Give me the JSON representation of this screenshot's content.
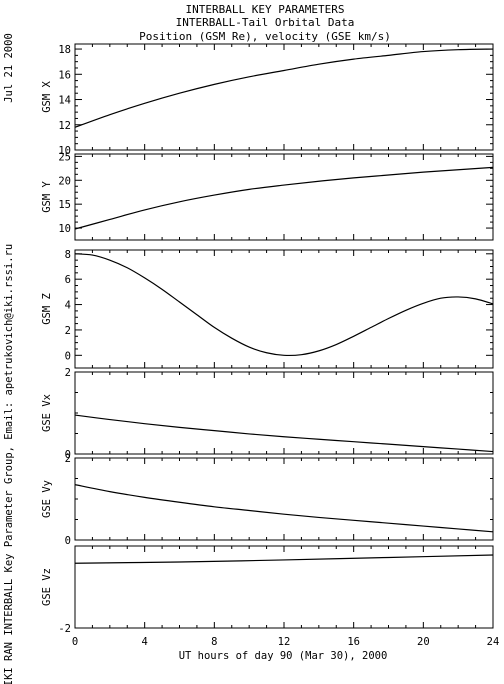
{
  "header": {
    "title_lines": [
      "INTERBALL KEY PARAMETERS",
      "INTERBALL-Tail Orbital Data",
      "Position (GSM Re), velocity (GSE km/s)"
    ],
    "date_stamp": "Jul 21 2000",
    "credit": "IKI RAN INTERBALL Key Parameter Group, Email: apetrukovich@iki.rssi.ru"
  },
  "chart_data": {
    "type": "line",
    "xlabel": "UT hours of day  90 (Mar 30), 2000",
    "xlim": [
      0,
      24
    ],
    "xticks": [
      0,
      4,
      8,
      12,
      16,
      20,
      24
    ],
    "panels": [
      {
        "id": "gsm-x",
        "ylabel": "GSM X",
        "ylim": [
          10,
          18.4
        ],
        "yticks": [
          10,
          12,
          14,
          16,
          18
        ],
        "x": [
          0,
          2,
          4,
          6,
          8,
          10,
          12,
          14,
          16,
          18,
          20,
          22,
          24
        ],
        "y": [
          11.8,
          12.8,
          13.7,
          14.5,
          15.2,
          15.8,
          16.3,
          16.8,
          17.2,
          17.5,
          17.8,
          17.95,
          18.0
        ]
      },
      {
        "id": "gsm-y",
        "ylabel": "GSM Y",
        "ylim": [
          7.5,
          25.5
        ],
        "yticks": [
          10,
          15,
          20,
          25
        ],
        "x": [
          0,
          2,
          4,
          6,
          8,
          10,
          12,
          14,
          16,
          18,
          20,
          22,
          24
        ],
        "y": [
          9.8,
          11.8,
          13.8,
          15.5,
          16.9,
          18.1,
          19.0,
          19.8,
          20.5,
          21.1,
          21.7,
          22.2,
          22.7
        ]
      },
      {
        "id": "gsm-z",
        "ylabel": "GSM Z",
        "ylim": [
          -1,
          8.3
        ],
        "yticks": [
          0,
          2,
          4,
          6,
          8
        ],
        "x": [
          0,
          1,
          2,
          3,
          4,
          5,
          6,
          7,
          8,
          9,
          10,
          11,
          12,
          13,
          14,
          15,
          16,
          17,
          18,
          19,
          20,
          21,
          22,
          23,
          24
        ],
        "y": [
          8.0,
          7.9,
          7.5,
          6.9,
          6.1,
          5.2,
          4.2,
          3.2,
          2.2,
          1.35,
          0.65,
          0.2,
          0.0,
          0.05,
          0.35,
          0.85,
          1.5,
          2.2,
          2.9,
          3.55,
          4.1,
          4.5,
          4.6,
          4.45,
          4.05
        ]
      },
      {
        "id": "gse-vx",
        "ylabel": "GSE Vx",
        "ylim": [
          0,
          2
        ],
        "yticks": [
          0,
          2
        ],
        "x": [
          0,
          2,
          4,
          6,
          8,
          10,
          12,
          14,
          16,
          18,
          20,
          22,
          24
        ],
        "y": [
          0.95,
          0.84,
          0.74,
          0.65,
          0.57,
          0.49,
          0.42,
          0.36,
          0.3,
          0.24,
          0.18,
          0.12,
          0.06
        ]
      },
      {
        "id": "gse-vy",
        "ylabel": "GSE Vy",
        "ylim": [
          0,
          2
        ],
        "yticks": [
          0,
          2
        ],
        "x": [
          0,
          2,
          4,
          6,
          8,
          10,
          12,
          14,
          16,
          18,
          20,
          22,
          24
        ],
        "y": [
          1.35,
          1.18,
          1.04,
          0.92,
          0.81,
          0.72,
          0.63,
          0.55,
          0.48,
          0.41,
          0.34,
          0.27,
          0.2
        ]
      },
      {
        "id": "gse-vz",
        "ylabel": "GSE Vz",
        "ylim": [
          -2,
          0
        ],
        "yticks": [
          -2
        ],
        "x": [
          0,
          6,
          12,
          18,
          24
        ],
        "y": [
          -0.42,
          -0.39,
          -0.34,
          -0.28,
          -0.22
        ]
      }
    ]
  },
  "colors": {
    "line": "#000000",
    "background": "#ffffff"
  }
}
